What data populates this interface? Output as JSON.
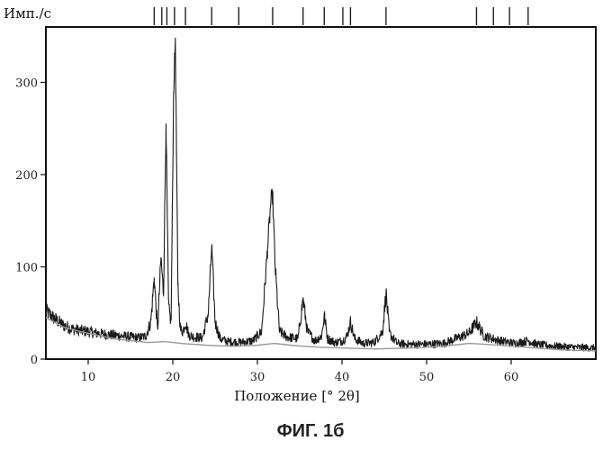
{
  "chart_data": {
    "type": "line",
    "ylabel": "Имп./с",
    "xlabel": "Положение [° 2θ]",
    "caption": "ФИГ. 1б",
    "xlim": [
      5,
      70
    ],
    "ylim": [
      0,
      360
    ],
    "x_ticks": [
      10,
      20,
      30,
      40,
      50,
      60
    ],
    "y_ticks": [
      0,
      100,
      200,
      300
    ],
    "grid": false,
    "reference_peaks": [
      17.8,
      18.7,
      19.3,
      20.2,
      21.5,
      24.6,
      27.8,
      31.8,
      35.4,
      37.9,
      40.1,
      41.0,
      45.2,
      55.9,
      57.9,
      59.8,
      62.0
    ],
    "series": [
      {
        "role": "measured pattern",
        "x": [
          5,
          6,
          7,
          8,
          9,
          10,
          11,
          12,
          13,
          14,
          15,
          16,
          16.8,
          17.4,
          17.8,
          18.2,
          18.6,
          18.9,
          19.2,
          19.5,
          19.8,
          20.1,
          20.3,
          20.6,
          20.9,
          21.2,
          21.5,
          21.9,
          22.5,
          23.5,
          24.2,
          24.6,
          25.0,
          25.6,
          26.5,
          28.0,
          29.5,
          30.5,
          31.2,
          31.6,
          31.8,
          32.1,
          32.6,
          33.5,
          34.8,
          35.4,
          35.9,
          36.8,
          37.6,
          37.9,
          38.3,
          39.2,
          40.1,
          40.6,
          41.0,
          41.5,
          42.5,
          43.8,
          44.8,
          45.2,
          45.6,
          46.5,
          48.0,
          50.0,
          52.0,
          54.0,
          55.0,
          55.9,
          56.8,
          57.9,
          58.6,
          59.8,
          60.5,
          62.0,
          63.0,
          65.0,
          67.0,
          70.0
        ],
        "y": [
          52,
          44,
          37,
          33,
          31,
          30,
          28,
          27,
          26,
          25,
          24,
          23,
          25,
          40,
          88,
          30,
          110,
          70,
          255,
          55,
          40,
          290,
          348,
          80,
          32,
          30,
          40,
          26,
          24,
          23,
          50,
          122,
          40,
          22,
          19,
          18,
          20,
          30,
          120,
          172,
          178,
          100,
          30,
          24,
          22,
          65,
          30,
          20,
          25,
          48,
          22,
          18,
          20,
          25,
          40,
          22,
          17,
          18,
          30,
          72,
          28,
          17,
          16,
          16,
          17,
          24,
          28,
          40,
          25,
          22,
          20,
          18,
          17,
          20,
          16,
          14,
          13,
          12
        ]
      },
      {
        "role": "background",
        "x": [
          5,
          7,
          9,
          11,
          13,
          15,
          17,
          19,
          21,
          24,
          27,
          30,
          32,
          34,
          37,
          40,
          44,
          48,
          52,
          55,
          57,
          60,
          63,
          66,
          70
        ],
        "y": [
          45,
          35,
          30,
          26,
          22,
          20,
          18,
          19,
          17,
          15,
          14,
          15,
          17,
          15,
          13,
          12,
          11,
          12,
          14,
          17,
          16,
          14,
          12,
          10,
          9
        ]
      }
    ]
  }
}
